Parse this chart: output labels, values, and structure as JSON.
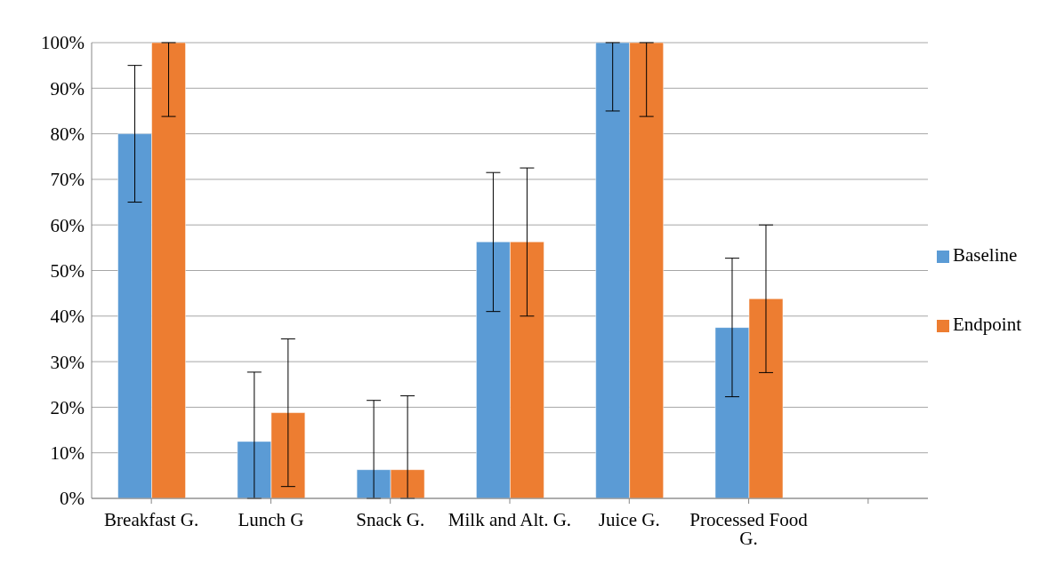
{
  "chart_data": {
    "type": "bar",
    "categories": [
      "Breakfast G.",
      "Lunch G",
      "Snack G.",
      "Milk and Alt. G.",
      "Juice G.",
      "Processed Food G.",
      null
    ],
    "series": [
      {
        "name": "Baseline",
        "color": "#5b9bd5",
        "values": [
          80,
          12.5,
          6.3,
          56.3,
          100,
          37.5,
          null
        ],
        "errors": [
          [
            65,
            95
          ],
          [
            0,
            27.7
          ],
          [
            0,
            21.5
          ],
          [
            41,
            71.5
          ],
          [
            85,
            100
          ],
          [
            22.3,
            52.7
          ],
          null
        ]
      },
      {
        "name": "Endpoint",
        "color": "#ed7d31",
        "values": [
          100,
          18.8,
          6.3,
          56.3,
          100,
          43.8,
          null
        ],
        "errors": [
          [
            83.8,
            100
          ],
          [
            2.6,
            35
          ],
          [
            0,
            22.5
          ],
          [
            40,
            72.5
          ],
          [
            83.8,
            100
          ],
          [
            27.6,
            60
          ],
          null
        ]
      }
    ],
    "ylim": [
      0,
      100
    ],
    "yticks": [
      {
        "value": 0,
        "label": "0%"
      },
      {
        "value": 10,
        "label": "10%"
      },
      {
        "value": 20,
        "label": "20%"
      },
      {
        "value": 30,
        "label": "30%"
      },
      {
        "value": 40,
        "label": "40%"
      },
      {
        "value": 50,
        "label": "50%"
      },
      {
        "value": 60,
        "label": "60%"
      },
      {
        "value": 70,
        "label": "70%"
      },
      {
        "value": 80,
        "label": "80%"
      },
      {
        "value": 90,
        "label": "90%"
      },
      {
        "value": 100,
        "label": "100%"
      }
    ],
    "grid": "y",
    "legend": "right"
  }
}
